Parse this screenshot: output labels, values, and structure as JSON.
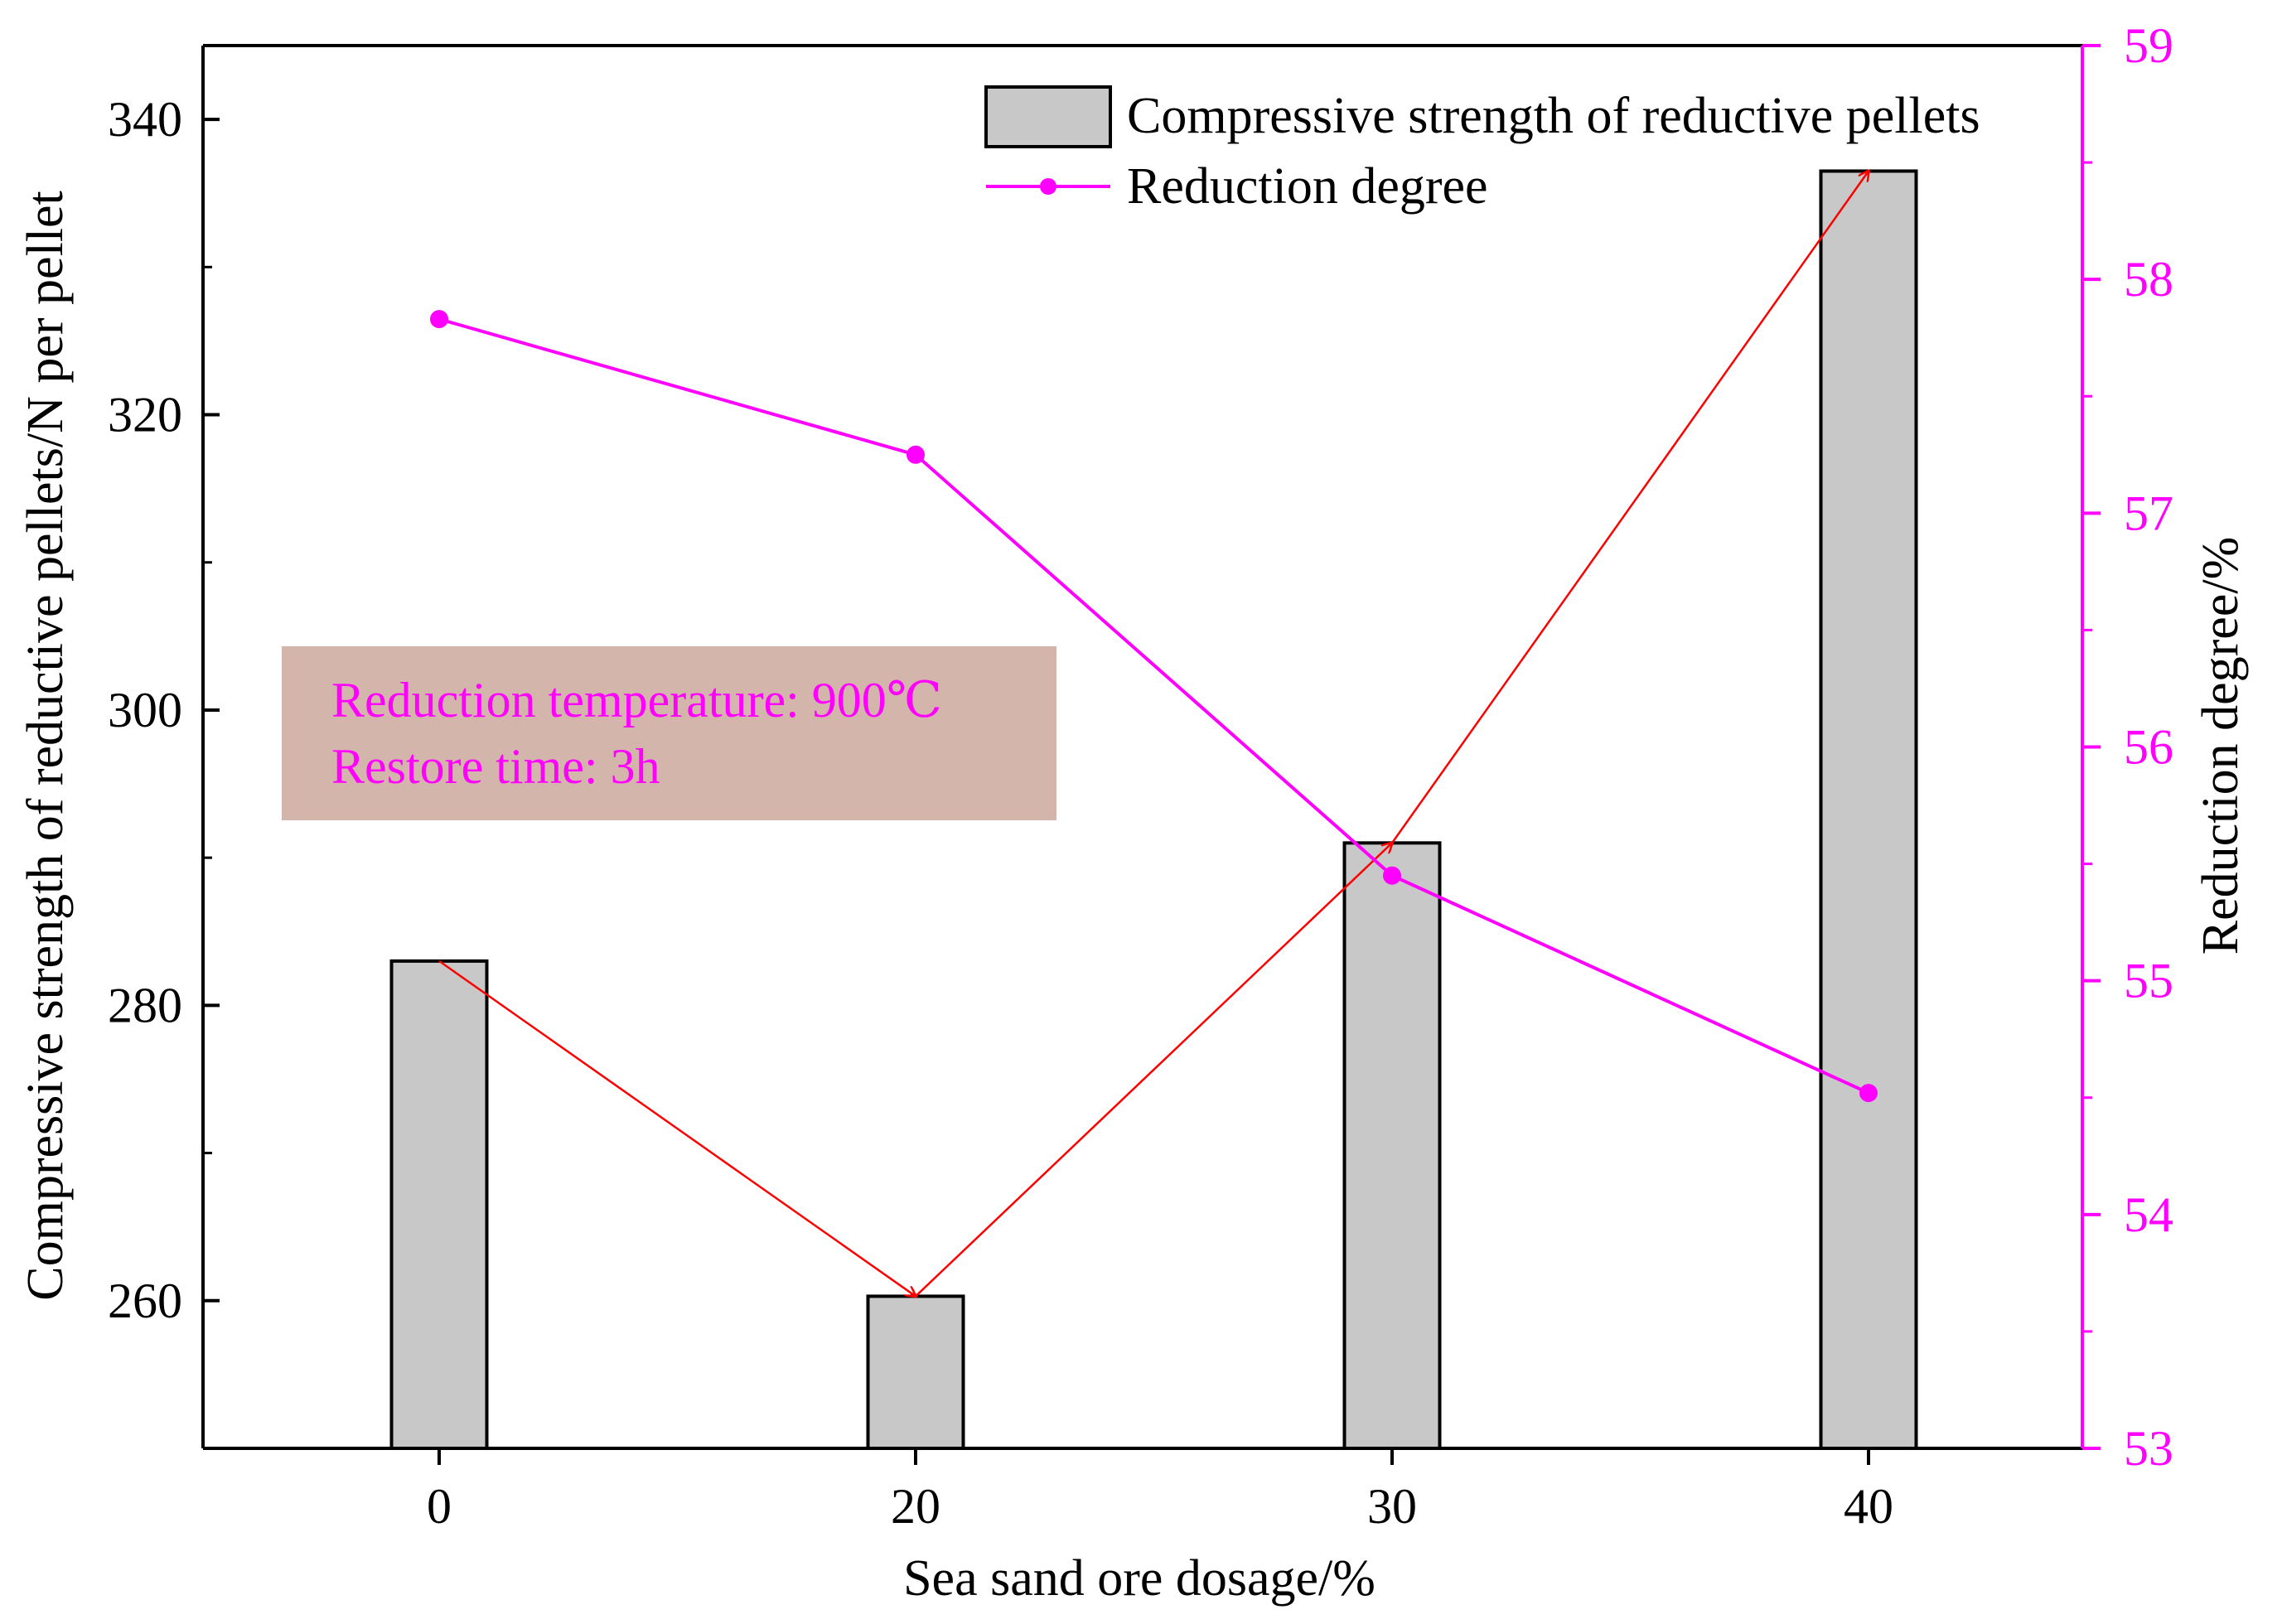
{
  "chart_data": {
    "type": "bar",
    "xlabel": "Sea sand ore dosage/%",
    "categories": [
      "0",
      "20",
      "30",
      "40"
    ],
    "ylabel_left": "Compressive strength of reductive pellets/N per pellet",
    "ylabel_right": "Reduction degree/%",
    "ylim_left": [
      250,
      345
    ],
    "ylim_right": [
      53,
      59
    ],
    "yticks_left": [
      260,
      280,
      300,
      320,
      340
    ],
    "yticks_right": [
      53,
      54,
      55,
      56,
      57,
      58,
      59
    ],
    "series": [
      {
        "name": "Compressive strength of reductive pellets",
        "type": "bar",
        "axis": "left",
        "color": "#c8c8c8",
        "values": [
          283,
          260.3,
          291,
          336.5
        ]
      },
      {
        "name": "Reduction degree",
        "type": "line",
        "axis": "right",
        "color": "#ff00ff",
        "values": [
          57.83,
          57.25,
          55.45,
          54.52
        ]
      }
    ],
    "trend_arrows": {
      "color": "#ff0000",
      "series": "Compressive strength of reductive pellets"
    },
    "legend_position": "top-right",
    "annotation": {
      "lines": [
        "Reduction temperature: 900℃",
        "Restore time: 3h"
      ],
      "text_color": "#ff00ff",
      "background": "#d4b5ab",
      "position": "middle-left"
    },
    "right_axis_color": "#ff00ff"
  }
}
